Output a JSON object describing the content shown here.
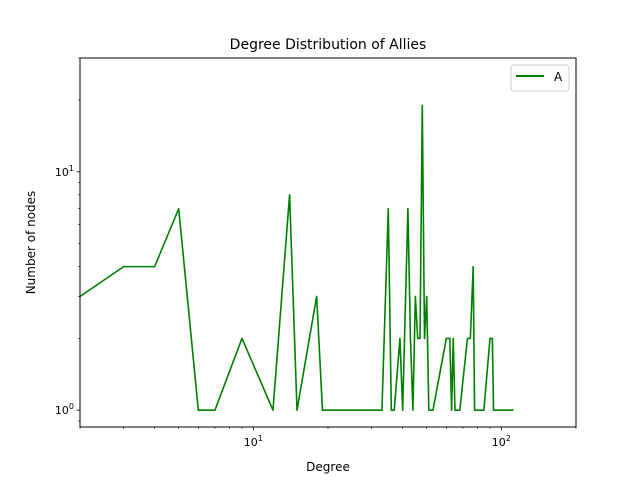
{
  "chart_data": {
    "type": "line",
    "title": "Degree Distribution of Allies",
    "xlabel": "Degree",
    "ylabel": "Number of nodes",
    "xscale": "log",
    "yscale": "log",
    "xlim": [
      2,
      200
    ],
    "ylim": [
      0.85,
      30
    ],
    "grid": false,
    "legend_position": "upper right",
    "x_ticks": [
      {
        "value": 10,
        "base": "10",
        "exp": "1"
      },
      {
        "value": 100,
        "base": "10",
        "exp": "2"
      }
    ],
    "y_ticks": [
      {
        "value": 1,
        "base": "10",
        "exp": "0"
      },
      {
        "value": 10,
        "base": "10",
        "exp": "1"
      }
    ],
    "series": [
      {
        "name": "A",
        "color": "#008000",
        "x": [
          2,
          3,
          4,
          5,
          6,
          7,
          9,
          12,
          14,
          15,
          18,
          19,
          20,
          25,
          33,
          35,
          36,
          37,
          39,
          40,
          42,
          43,
          44,
          45,
          46,
          47,
          48,
          49,
          50,
          51,
          52,
          53,
          60,
          62,
          63,
          64,
          65,
          66,
          67,
          68,
          73,
          75,
          77,
          78,
          85,
          90,
          92,
          93,
          100,
          112
        ],
        "y": [
          3,
          4,
          4,
          7,
          1,
          1,
          2,
          1,
          8,
          1,
          3,
          1,
          1,
          1,
          1,
          7,
          1,
          1,
          2,
          1,
          7,
          2,
          1,
          3,
          2,
          2,
          19,
          2,
          3,
          1,
          1,
          1,
          2,
          2,
          1,
          2,
          1,
          1,
          1,
          1,
          2,
          2,
          4,
          1,
          1,
          2,
          2,
          1,
          1,
          1
        ]
      }
    ]
  }
}
